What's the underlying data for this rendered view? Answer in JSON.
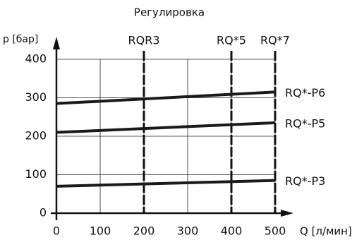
{
  "chart_data": {
    "type": "line",
    "title": "Регулировка",
    "y_label": "p [бар]",
    "x_label": "Q [л/мин]",
    "x": [
      0,
      500
    ],
    "xlim": [
      0,
      500
    ],
    "xticks": [
      0,
      100,
      200,
      300,
      400,
      500
    ],
    "ylim": [
      0,
      400
    ],
    "yticks": [
      0,
      100,
      200,
      300,
      400
    ],
    "grid": true,
    "series": [
      {
        "name": "RQ*-P6",
        "color": "#1a1a1a",
        "values": [
          285,
          315
        ]
      },
      {
        "name": "RQ*-P5",
        "color": "#1a1a1a",
        "values": [
          210,
          235
        ]
      },
      {
        "name": "RQ*-P3",
        "color": "#1a1a1a",
        "values": [
          70,
          85
        ]
      }
    ],
    "markers": [
      {
        "label": "RQR3",
        "x": 200
      },
      {
        "label": "RQ*5",
        "x": 400
      },
      {
        "label": "RQ*7",
        "x": 500
      }
    ]
  }
}
